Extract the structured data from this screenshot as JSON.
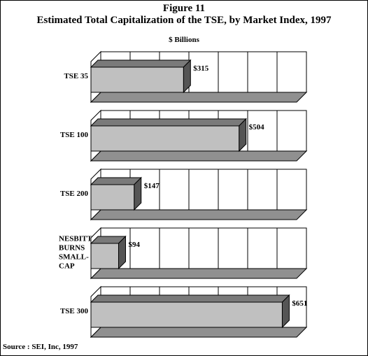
{
  "header": {
    "figure_label": "Figure 11",
    "title": "Estimated Total Capitalization of the TSE, by Market Index, 1997",
    "units": "$ Billions"
  },
  "footer": {
    "source": "Source : SEI, Inc, 1997"
  },
  "colors": {
    "bar_front": "#c0c0c0",
    "bar_top": "#7a7a7a",
    "bar_side": "#555555",
    "panel": "#ffffff",
    "floor": "#909090"
  },
  "chart_data": {
    "type": "bar",
    "orientation": "horizontal",
    "style": "3d-small-multiples",
    "categories": [
      [
        "TSE  35"
      ],
      [
        "TSE 100"
      ],
      [
        "TSE 200"
      ],
      [
        "NESBITT",
        "BURNS",
        "SMALL-",
        "CAP"
      ],
      [
        "TSE 300"
      ]
    ],
    "values": [
      315,
      504,
      147,
      94,
      651
    ],
    "value_labels": [
      "$315",
      "$504",
      "$147",
      "$94",
      "$651"
    ],
    "xlim": [
      0,
      700
    ],
    "x_grid_step": 100,
    "grid": true,
    "legend": "none"
  }
}
